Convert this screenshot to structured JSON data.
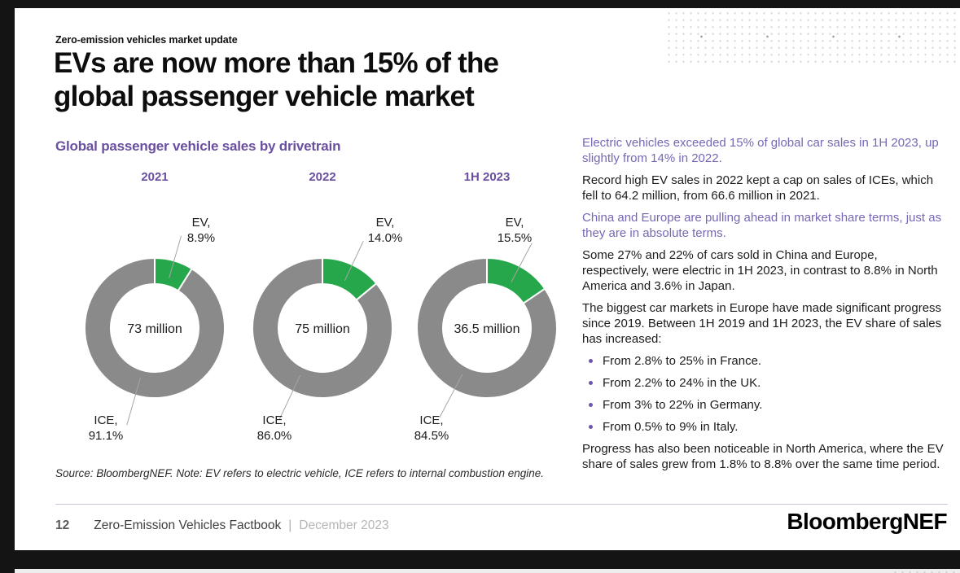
{
  "page": {
    "eyebrow": "Zero-emission vehicles market update",
    "title_line1": "EVs are now more than 15% of the",
    "title_line2": "global passenger vehicle market"
  },
  "chart_data": {
    "type": "pie",
    "subtype": "donut",
    "title": "Global passenger vehicle sales by drivetrain",
    "legend_position": "data-labels",
    "colors": {
      "EV": "#27a74b",
      "ICE": "#8a8a8a"
    },
    "donuts": [
      {
        "period": "2021",
        "total_label": "73 million",
        "slices": [
          {
            "name": "EV",
            "pct": 8.9,
            "pct_label": "8.9%"
          },
          {
            "name": "ICE",
            "pct": 91.1,
            "pct_label": "91.1%"
          }
        ]
      },
      {
        "period": "2022",
        "total_label": "75 million",
        "slices": [
          {
            "name": "EV",
            "pct": 14.0,
            "pct_label": "14.0%"
          },
          {
            "name": "ICE",
            "pct": 86.0,
            "pct_label": "86.0%"
          }
        ]
      },
      {
        "period": "1H 2023",
        "total_label": "36.5 million",
        "slices": [
          {
            "name": "EV",
            "pct": 15.5,
            "pct_label": "15.5%"
          },
          {
            "name": "ICE",
            "pct": 84.5,
            "pct_label": "84.5%"
          }
        ]
      }
    ],
    "source_note": "Source: BloombergNEF. Note: EV refers to electric vehicle, ICE refers to internal combustion engine."
  },
  "commentary": {
    "items": [
      {
        "kind": "para",
        "style": "purple",
        "text": "Electric vehicles exceeded 15% of global car sales in 1H 2023, up slightly from 14% in 2022."
      },
      {
        "kind": "para",
        "style": "black",
        "text": "Record high EV sales in 2022 kept a cap on sales of ICEs, which fell to 64.2 million, from 66.6 million in 2021."
      },
      {
        "kind": "para",
        "style": "purple",
        "text": "China and Europe are pulling ahead in market share terms, just as they are in absolute terms."
      },
      {
        "kind": "para",
        "style": "black",
        "text": "Some 27% and 22% of cars sold in China and Europe, respectively, were electric in 1H 2023, in contrast to 8.8% in North America and 3.6% in Japan."
      },
      {
        "kind": "para",
        "style": "black",
        "text": "The biggest car markets in Europe have made significant progress since 2019. Between 1H 2019 and 1H 2023, the EV share of sales has increased:"
      },
      {
        "kind": "bullet",
        "style": "black",
        "text": "From 2.8% to 25% in France."
      },
      {
        "kind": "bullet",
        "style": "black",
        "text": "From 2.2% to 24% in the UK."
      },
      {
        "kind": "bullet",
        "style": "black",
        "text": "From 3% to 22% in Germany."
      },
      {
        "kind": "bullet",
        "style": "black",
        "text": "From 0.5% to 9% in Italy."
      },
      {
        "kind": "para",
        "style": "black",
        "text": "Progress has also been noticeable in North America, where the EV share of sales grew from 1.8% to 8.8% over the same time period."
      }
    ]
  },
  "footer": {
    "page_number": "12",
    "doc_title": "Zero-Emission Vehicles Factbook",
    "separator": "|",
    "date": "December 2023",
    "logo": "BloombergNEF"
  }
}
